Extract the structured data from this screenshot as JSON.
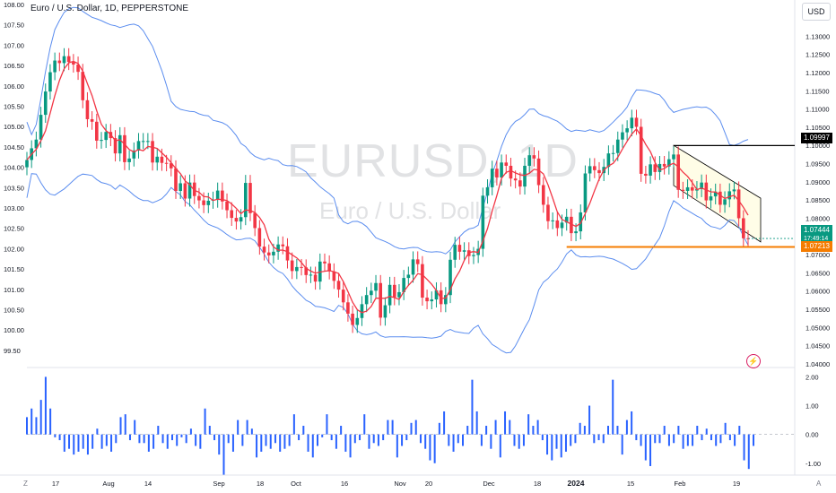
{
  "header": {
    "title": "Euro / U.S. Dollar, 1D, PEPPERSTONE",
    "currency_button": "USD"
  },
  "watermark": {
    "symbol": "EURUSD, 1D",
    "description": "Euro / U.S. Dollar"
  },
  "labels": {
    "resistance": "1.09997",
    "last_price": "1.07444",
    "countdown": "17:49:14",
    "support": "1.07213"
  },
  "footer": {
    "left_icon": "Z",
    "right_icon": "A"
  },
  "colors": {
    "up": "#089981",
    "down": "#f23645",
    "ma": "#f23645",
    "bands": "#5b8def",
    "histogram": "#2962ff",
    "support_line": "#f57c00",
    "resistance_line": "#000000",
    "channel_fill": "#fffde7"
  },
  "chart_data": {
    "type": "candlestick",
    "symbol": "EURUSD",
    "timeframe": "1D",
    "left_axis_ticks": [
      "108.00",
      "107.50",
      "107.00",
      "106.50",
      "106.00",
      "105.50",
      "105.00",
      "104.50",
      "104.00",
      "103.50",
      "103.00",
      "102.50",
      "102.00",
      "101.50",
      "101.00",
      "100.50",
      "100.00",
      "99.50"
    ],
    "right_axis_ticks": [
      "1.13000",
      "1.12500",
      "1.12000",
      "1.11500",
      "1.11000",
      "1.10500",
      "1.10000",
      "1.09500",
      "1.09000",
      "1.08500",
      "1.08000",
      "1.07500",
      "1.07000",
      "1.06500",
      "1.06000",
      "1.05500",
      "1.05000",
      "1.04500",
      "1.04000"
    ],
    "x_ticks": [
      "17",
      "Aug",
      "14",
      "Sep",
      "18",
      "Oct",
      "16",
      "Nov",
      "20",
      "Dec",
      "18",
      "2024",
      "15",
      "Feb",
      "19"
    ],
    "ylim": [
      1.0395,
      1.1355
    ],
    "closes": [
      1.096,
      1.0992,
      1.1016,
      1.1084,
      1.1148,
      1.1201,
      1.1233,
      1.1226,
      1.1245,
      1.1229,
      1.1222,
      1.1202,
      1.1124,
      1.1072,
      1.1065,
      1.1013,
      1.1015,
      1.1037,
      1.102,
      1.0978,
      1.1028,
      1.0954,
      1.0964,
      1.0986,
      1.1012,
      1.1012,
      1.1012,
      1.0953,
      1.0969,
      1.0952,
      1.0951,
      1.0937,
      1.0875,
      1.0896,
      1.0854,
      1.0898,
      1.0861,
      1.0849,
      1.0836,
      1.0848,
      1.0851,
      1.0876,
      1.0846,
      1.0822,
      1.0801,
      1.0791,
      1.0803,
      1.0897,
      1.0814,
      1.0773,
      1.0722,
      1.0706,
      1.0698,
      1.0708,
      1.0728,
      1.0723,
      1.0684,
      1.0655,
      1.0666,
      1.0665,
      1.0644,
      1.0645,
      1.0626,
      1.0681,
      1.0676,
      1.0654,
      1.0628,
      1.0604,
      1.0569,
      1.0538,
      1.0507,
      1.0526,
      1.0564,
      1.0589,
      1.0601,
      1.0622,
      1.0527,
      1.0561,
      1.0617,
      1.0583,
      1.0597,
      1.0636,
      1.0645,
      1.0687,
      1.0674,
      1.0582,
      1.0572,
      1.0577,
      1.0602,
      1.0564,
      1.0589,
      1.0686,
      1.0727,
      1.0708,
      1.0712,
      1.0696,
      1.0699,
      1.0716,
      1.0862,
      1.0885,
      1.0936,
      1.0912,
      1.0953,
      1.0944,
      1.0909,
      1.0904,
      1.0887,
      1.0944,
      1.0973,
      1.0964,
      1.0891,
      1.0837,
      1.0792,
      1.0794,
      1.0773,
      1.0788,
      1.0804,
      1.0759,
      1.0764,
      1.0816,
      1.0923,
      1.0943,
      1.0932,
      1.0924,
      1.0941,
      1.0978,
      1.0979,
      1.1016,
      1.1036,
      1.1047,
      1.1076,
      1.1051,
      1.0922,
      1.0917,
      1.0948,
      1.0927,
      1.0949,
      1.0942,
      1.0962,
      1.0975,
      1.0878,
      1.0875,
      1.0885,
      1.0876,
      1.088,
      1.0898,
      1.0849,
      1.086,
      1.0873,
      1.0837,
      1.0852,
      1.0874,
      1.0879,
      1.08,
      1.0745,
      1.0744
    ],
    "histogram": {
      "ylim": [
        -1.35,
        2.2
      ],
      "ticks": [
        "2.00",
        "1.00",
        "0.00",
        "-1.00"
      ],
      "values": [
        0.6,
        0.9,
        0.6,
        1.2,
        2.0,
        0.9,
        -0.1,
        -0.2,
        -0.6,
        -0.5,
        -0.7,
        -0.6,
        -0.5,
        -0.7,
        -0.5,
        0.2,
        -0.5,
        -0.4,
        -0.6,
        -0.3,
        0.6,
        0.7,
        -0.2,
        0.5,
        -0.3,
        -0.3,
        -0.6,
        -0.5,
        0.3,
        -0.3,
        -0.5,
        -0.2,
        -0.4,
        -0.1,
        -0.3,
        0.2,
        -0.4,
        -0.5,
        0.9,
        0.3,
        -0.2,
        -0.7,
        -1.4,
        -0.3,
        -0.6,
        0.5,
        -0.4,
        0.5,
        0.2,
        -0.8,
        -0.6,
        -0.4,
        -0.5,
        -0.3,
        -0.6,
        -0.5,
        -0.4,
        0.7,
        -0.2,
        0.3,
        -0.6,
        -0.8,
        -0.4,
        -0.1,
        0.7,
        -0.2,
        -0.5,
        0.3,
        -0.6,
        -0.8,
        -0.3,
        -0.2,
        0.7,
        -0.5,
        -0.3,
        -0.4,
        -0.2,
        0.5,
        0.5,
        -0.8,
        -0.4,
        -0.2,
        0.4,
        0.5,
        -0.3,
        -0.5,
        -0.9,
        -1.0,
        0.4,
        0.8,
        -0.4,
        -0.6,
        -0.3,
        -0.4,
        0.3,
        1.9,
        0.8,
        -0.4,
        0.3,
        -0.5,
        0.5,
        -0.8,
        0.8,
        0.5,
        -0.4,
        -0.5,
        -0.4,
        0.7,
        0.3,
        0.5,
        -0.2,
        -0.7,
        -0.9,
        -0.5,
        -0.8,
        -0.6,
        -0.4,
        -0.3,
        0.4,
        0.3,
        1.0,
        -0.3,
        -0.2,
        -0.3,
        0.3,
        1.9,
        0.3,
        -0.7,
        0.5,
        0.8,
        -0.2,
        -0.4,
        -0.9,
        -1.1,
        -0.3,
        -0.3,
        0.3,
        -0.4,
        -0.3,
        0.3,
        -0.5,
        -0.4,
        -0.4,
        0.3,
        -0.2,
        0.2,
        -0.2,
        -0.4,
        -0.3,
        0.4,
        -0.2,
        -0.4,
        0.3,
        -0.9,
        -1.2,
        -0.4
      ]
    }
  }
}
